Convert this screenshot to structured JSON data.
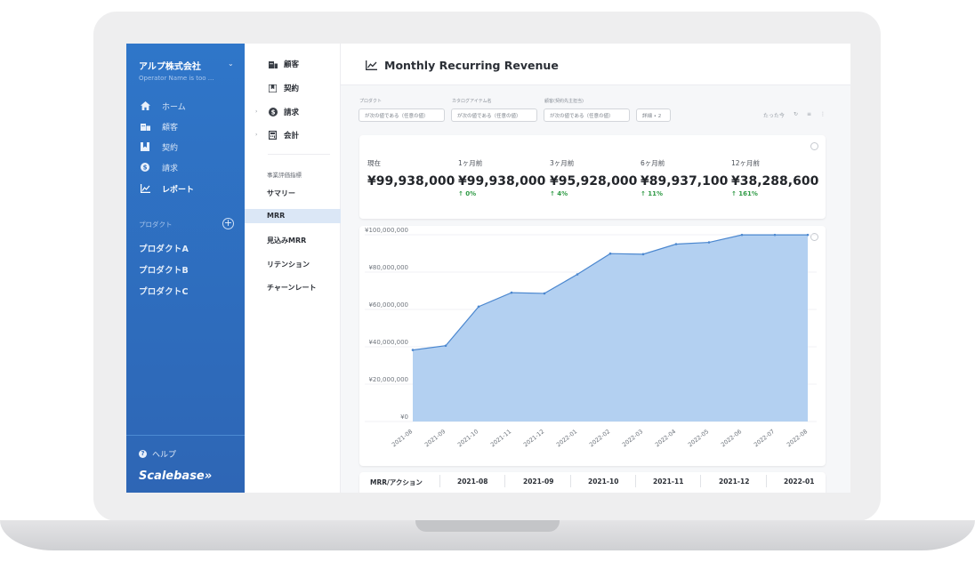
{
  "sidebar": {
    "company": "アルプ株式会社",
    "operator": "Operator Name is too ...",
    "nav": [
      {
        "label": "ホーム",
        "icon": "home-icon"
      },
      {
        "label": "顧客",
        "icon": "customer-icon"
      },
      {
        "label": "契約",
        "icon": "contract-icon"
      },
      {
        "label": "請求",
        "icon": "billing-icon"
      },
      {
        "label": "レポート",
        "icon": "report-icon"
      }
    ],
    "products_header": "プロダクト",
    "products": [
      "プロダクトA",
      "プロダクトB",
      "プロダクトC"
    ],
    "help": "ヘルプ",
    "brand": "Scalebase»"
  },
  "menu": {
    "items": [
      "顧客",
      "契約",
      "請求",
      "会計"
    ],
    "section_header": "事業評価指標",
    "subs": [
      "サマリー",
      "MRR",
      "見込みMRR",
      "リテンション",
      "チャーンレート"
    ]
  },
  "main": {
    "title": "Monthly Recurring Revenue",
    "filters": [
      {
        "label": "プロダクト",
        "value": "が次の値である（任意の値）"
      },
      {
        "label": "カタログアイテム名",
        "value": "が次の値である（任意の値）"
      },
      {
        "label": "顧客(契約先主担当)",
        "value": "が次の値である（任意の値）"
      },
      {
        "label": "",
        "value": "詳細 • 2"
      }
    ],
    "tools_label": "たった今"
  },
  "kpis": [
    {
      "label": "現在",
      "value": "¥99,938,000",
      "change": ""
    },
    {
      "label": "1ヶ月前",
      "value": "¥99,938,000",
      "change": "↑ 0%"
    },
    {
      "label": "3ヶ月前",
      "value": "¥95,928,000",
      "change": "↑ 4%"
    },
    {
      "label": "6ヶ月前",
      "value": "¥89,937,100",
      "change": "↑ 11%"
    },
    {
      "label": "12ヶ月前",
      "value": "¥38,288,600",
      "change": "↑ 161%"
    }
  ],
  "chart_data": {
    "type": "area",
    "x": [
      "2021-08",
      "2021-09",
      "2021-10",
      "2021-11",
      "2021-12",
      "2022-01",
      "2022-02",
      "2022-03",
      "2022-04",
      "2022-05",
      "2022-06",
      "2022-07",
      "2022-08"
    ],
    "series": [
      {
        "values": [
          38288600,
          40600000,
          61500000,
          69000000,
          68600000,
          78800000,
          89900000,
          89600000,
          95000000,
          95928000,
          99938000,
          99938000,
          99938000
        ]
      }
    ],
    "ylim": [
      0,
      100000000
    ],
    "y_ticks": [
      "¥0",
      "¥20,000,000",
      "¥40,000,000",
      "¥60,000,000",
      "¥80,000,000",
      "¥100,000,000"
    ],
    "grid": true,
    "fill_color": "#b3d0f1",
    "line_color": "#4b87cf"
  },
  "table": {
    "headers": [
      "MRR/アクション",
      "2021-08",
      "2021-09",
      "2021-10",
      "2021-11",
      "2021-12",
      "2022-01"
    ]
  },
  "colors": {
    "sidebar": "#2f70c2",
    "accent": "#2f9a45"
  }
}
